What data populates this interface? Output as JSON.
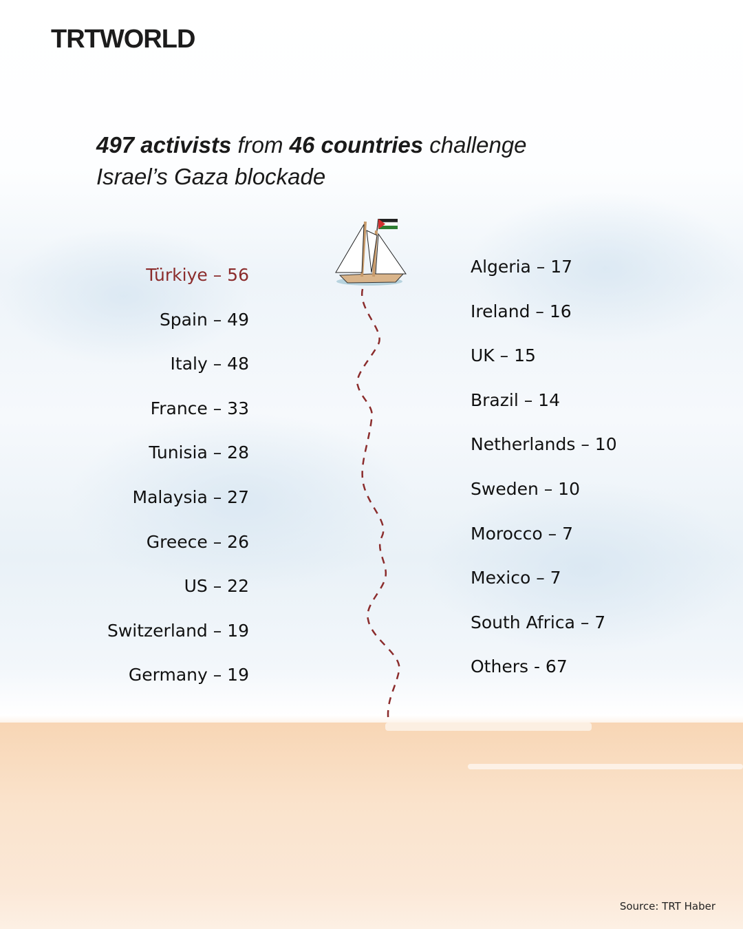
{
  "brand": {
    "logo": "TRTWORLD"
  },
  "title": {
    "part1": "497 activists",
    "part2": " from ",
    "part3": "46 countries",
    "part4": " challenge",
    "line2": "Israel’s Gaza blockade"
  },
  "left_list": [
    {
      "label": "Türkiye – 56",
      "highlight": true
    },
    {
      "label": "Spain – 49"
    },
    {
      "label": "Italy – 48"
    },
    {
      "label": "France – 33"
    },
    {
      "label": "Tunisia – 28"
    },
    {
      "label": "Malaysia – 27"
    },
    {
      "label": "Greece – 26"
    },
    {
      "label": "US – 22"
    },
    {
      "label": "Switzerland – 19"
    },
    {
      "label": "Germany – 19"
    }
  ],
  "right_list": [
    {
      "label": "Algeria – 17"
    },
    {
      "label": "Ireland – 16"
    },
    {
      "label": "UK – 15"
    },
    {
      "label": "Brazil – 14"
    },
    {
      "label": "Netherlands – 10"
    },
    {
      "label": "Sweden – 10"
    },
    {
      "label": "Morocco – 7"
    },
    {
      "label": "Mexico – 7"
    },
    {
      "label": "South Africa – 7"
    },
    {
      "label": "Others - 67"
    }
  ],
  "source": "Source: TRT Haber",
  "colors": {
    "highlight": "#8b2c2c",
    "path": "#8b2c2c",
    "sand": "#f8d6b5"
  },
  "icons": {
    "ship": "sailing-ship-with-palestinian-flag-icon"
  }
}
